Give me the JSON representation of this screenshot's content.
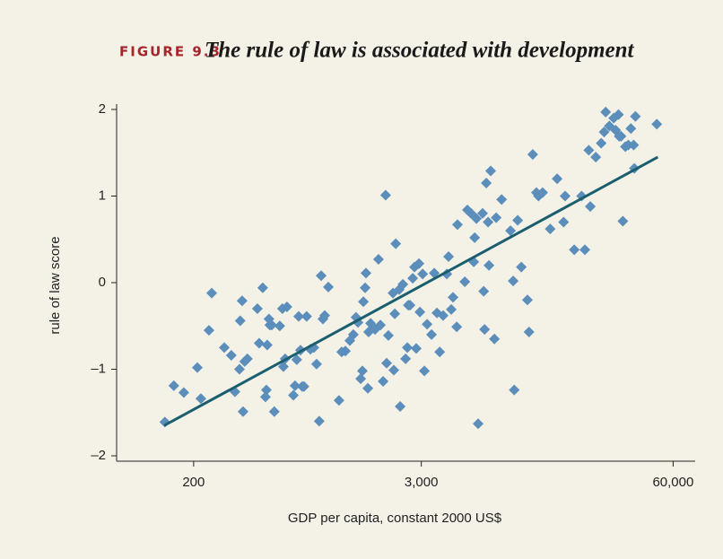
{
  "chart_data": {
    "type": "scatter",
    "figure_label": "FIGURE 9.3",
    "title": "The rule of law is associated with development",
    "x_label": "GDP per capita, constant 2000 US$",
    "y_label": "rule of law score",
    "x_scale": "log",
    "xlim": [
      80,
      78000
    ],
    "ylim": [
      -2,
      2
    ],
    "xticks": [
      200,
      {
        "value": 3000,
        "label": "3,000"
      },
      {
        "value": 60000,
        "label": "60,000"
      }
    ],
    "yticks": [
      {
        "value": -2,
        "label": "–2"
      },
      {
        "value": -1,
        "label": "–1"
      },
      0,
      1,
      2
    ],
    "color": "#5b8ebb",
    "x": [
      142,
      158,
      178,
      209,
      218,
      240,
      248,
      288,
      313,
      327,
      345,
      348,
      356,
      360,
      367,
      379,
      427,
      436,
      455,
      470,
      475,
      480,
      490,
      495,
      506,
      522,
      557,
      575,
      582,
      594,
      607,
      655,
      668,
      682,
      698,
      713,
      728,
      743,
      767,
      802,
      836,
      863,
      891,
      912,
      931,
      951,
      993,
      1127,
      1164,
      1216,
      1282,
      1337,
      1380,
      1413,
      1459,
      1489,
      1507,
      1538,
      1553,
      1589,
      1603,
      1641,
      1730,
      1803,
      1845,
      1905,
      1963,
      1986,
      2028,
      2143,
      2163,
      2188,
      2213,
      2307,
      2333,
      2410,
      2489,
      2541,
      2570,
      2624,
      2710,
      2767,
      2825,
      2917,
      2951,
      3048,
      3112,
      3214,
      3388,
      3499,
      3614,
      3733,
      3890,
      4064,
      4150,
      4285,
      4375,
      4571,
      4613,
      5035,
      5190,
      5420,
      5600,
      5660,
      5780,
      5900,
      6220,
      6300,
      6370,
      6500,
      6640,
      6710,
      6850,
      7160,
      7310,
      7800,
      8670,
      8950,
      9060,
      9440,
      9860,
      10600,
      10800,
      11300,
      11800,
      12100,
      12700,
      13900,
      15100,
      16300,
      16600,
      18500,
      20200,
      21000,
      22000,
      22400,
      23900,
      25500,
      26400,
      26900,
      28100,
      29600,
      30300,
      31300,
      31600,
      32300,
      33000,
      34000,
      35200,
      36300,
      37500,
      37800,
      38300,
      49400
    ],
    "values": [
      -1.61,
      -1.19,
      -1.27,
      -0.98,
      -1.34,
      -0.55,
      -0.12,
      -0.75,
      -0.84,
      -1.26,
      -1.0,
      -0.44,
      -0.21,
      -1.49,
      -0.91,
      -0.88,
      -0.3,
      -0.7,
      -0.06,
      -1.32,
      -1.24,
      -0.72,
      -0.42,
      -0.49,
      -0.49,
      -1.49,
      -0.5,
      -0.3,
      -0.97,
      -0.88,
      -0.28,
      -1.3,
      -1.19,
      -0.89,
      -0.39,
      -0.78,
      -1.2,
      -1.2,
      -0.39,
      -0.77,
      -0.75,
      -0.94,
      -1.6,
      0.08,
      -0.42,
      -0.38,
      -0.05,
      -1.36,
      -0.8,
      -0.79,
      -0.67,
      -0.6,
      -0.4,
      -0.46,
      -1.11,
      -1.02,
      -0.22,
      -0.06,
      0.11,
      -1.22,
      -0.57,
      -0.47,
      -0.54,
      0.27,
      -0.49,
      -1.14,
      1.01,
      -0.93,
      -0.61,
      -0.12,
      -1.01,
      -0.36,
      0.45,
      -0.08,
      -1.43,
      -0.02,
      -0.88,
      -0.75,
      -0.26,
      -0.26,
      0.05,
      0.18,
      -0.76,
      0.22,
      -0.34,
      0.1,
      -1.02,
      -0.48,
      -0.6,
      0.11,
      -0.35,
      -0.8,
      -0.38,
      0.1,
      0.3,
      -0.31,
      -0.17,
      -0.51,
      0.67,
      0.01,
      0.84,
      0.8,
      0.24,
      0.52,
      0.74,
      -1.63,
      0.8,
      -0.1,
      -0.54,
      1.15,
      0.7,
      0.2,
      1.29,
      -0.65,
      0.75,
      0.96,
      0.6,
      0.02,
      -1.24,
      0.72,
      0.18,
      -0.2,
      -0.57,
      1.48,
      1.04,
      1.0,
      1.04,
      0.62,
      1.2,
      0.7,
      1.0,
      0.38,
      1.0,
      0.38,
      1.53,
      0.88,
      1.45,
      1.61,
      1.74,
      1.97,
      1.81,
      1.9,
      1.76,
      1.94,
      1.69,
      1.69,
      0.71,
      1.57,
      1.59,
      1.78,
      1.59,
      1.32,
      1.92,
      1.83
    ],
    "trend": {
      "x": [
        141,
        50000
      ],
      "y": [
        -1.65,
        1.45
      ],
      "color": "#1b5f6e"
    }
  }
}
